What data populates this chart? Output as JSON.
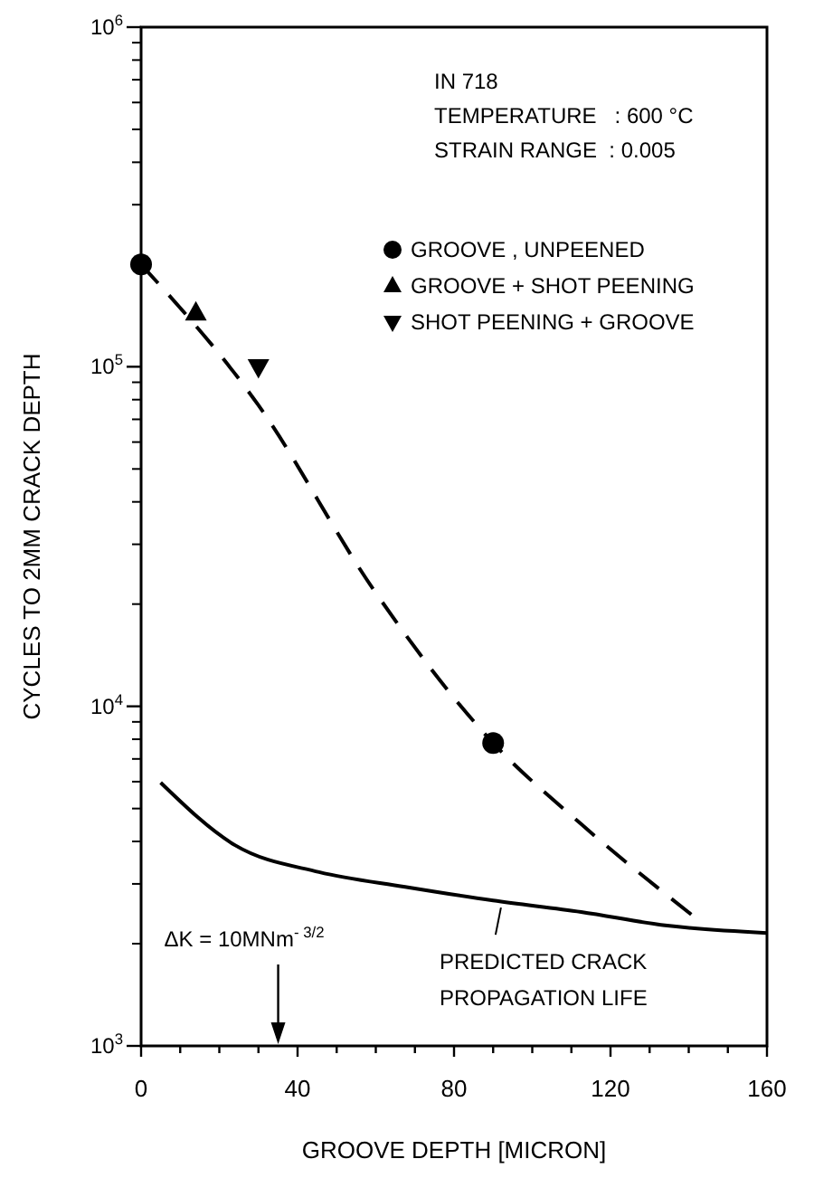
{
  "chart_data": {
    "type": "line",
    "xlabel": "GROOVE DEPTH [MICRON]",
    "ylabel": "CYCLES TO 2MM CRACK DEPTH",
    "log": "y",
    "grid": false,
    "legend": "top right",
    "xlim": [
      0,
      160
    ],
    "xticks": [
      0,
      {
        "value": 10,
        "label": null
      },
      {
        "value": 20,
        "label": null
      },
      {
        "value": 30,
        "label": null
      },
      40,
      {
        "value": 50,
        "label": null
      },
      {
        "value": 60,
        "label": null
      },
      {
        "value": 70,
        "label": null
      },
      80,
      {
        "value": 90,
        "label": null
      },
      {
        "value": 100,
        "label": null
      },
      {
        "value": 110,
        "label": null
      },
      120,
      {
        "value": 130,
        "label": null
      },
      {
        "value": 140,
        "label": null
      },
      {
        "value": 150,
        "label": null
      },
      160
    ],
    "ylim": [
      1000,
      1000000
    ],
    "yticks": [
      {
        "value": 1000,
        "label": "10$^{3}$"
      },
      {
        "value": 10000,
        "label": "10$^{4}$"
      },
      {
        "value": 100000,
        "label": "10$^{5}$"
      },
      {
        "value": 1000000,
        "label": "10$^{6}$"
      }
    ],
    "series": [
      {
        "color": "#000000",
        "line_style": "dashed",
        "marker": "none",
        "x": [
          0,
          30,
          59.5,
          90,
          112.5,
          142
        ],
        "values": [
          200000,
          77000,
          22000,
          7800,
          4500,
          2370
        ]
      },
      {
        "color": "#000000",
        "line_style": "solid",
        "marker": "none",
        "x": [
          5,
          24,
          45.5,
          67.5,
          90,
          112.5,
          134.5,
          160
        ],
        "values": [
          5960,
          3900,
          3250,
          2940,
          2680,
          2480,
          2260,
          2150
        ]
      },
      {
        "type": "scatter",
        "name": "GROOVE , UNPEENED",
        "color": "#000000",
        "marker": "circle",
        "x": [
          0,
          90
        ],
        "values": [
          200000,
          7800
        ]
      },
      {
        "type": "scatter",
        "name": "GROOVE + SHOT PEENING",
        "color": "#000000",
        "marker": "triangle",
        "x": [
          14
        ],
        "values": [
          144000
        ]
      },
      {
        "type": "scatter",
        "name": "SHOT PEENING + GROOVE",
        "color": "#000000",
        "marker": "triangle-down",
        "x": [
          30
        ],
        "values": [
          100000
        ]
      }
    ],
    "annotations": [
      "IN 718",
      "TEMPERATURE   : 600 °C",
      "STRAIN RANGE  : 0.005",
      {
        "text": "PREDICTED CRACK PROPAGATION LIFE",
        "x": 92,
        "y": 2650
      },
      "ΔK = 10MNm$^{- 3/2}$"
    ]
  }
}
